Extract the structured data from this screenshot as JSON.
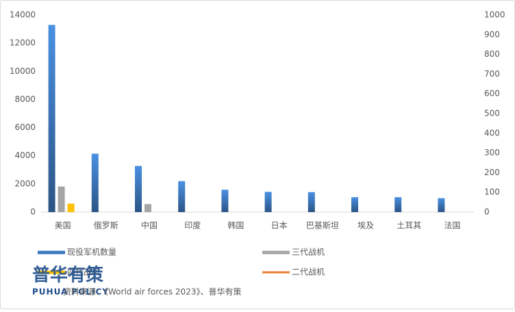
{
  "chart_data": {
    "type": "bar",
    "categories": [
      "美国",
      "俄罗斯",
      "中国",
      "印度",
      "韩国",
      "日本",
      "巴基斯坦",
      "埃及",
      "土耳其",
      "法国"
    ],
    "series": [
      {
        "name": "现役军机数量",
        "color": "#3a78c2",
        "values": [
          13300,
          4150,
          3280,
          2200,
          1590,
          1440,
          1420,
          1060,
          1060,
          990
        ]
      },
      {
        "name": "三代战机",
        "color": "#a5a5a5",
        "values": [
          1820,
          null,
          570,
          null,
          null,
          null,
          null,
          null,
          null,
          null
        ]
      },
      {
        "name": "四代战机",
        "color": "#ffc000",
        "values": [
          600,
          null,
          null,
          null,
          null,
          null,
          null,
          null,
          null,
          null
        ]
      },
      {
        "name": "二代战机",
        "color": "#ed7d31",
        "kind": "line",
        "values": [
          null,
          null,
          null,
          null,
          null,
          null,
          null,
          null,
          null,
          null
        ]
      }
    ],
    "ylim": [
      0,
      14000
    ],
    "yticks": [
      0,
      2000,
      4000,
      6000,
      8000,
      10000,
      12000,
      14000
    ],
    "y2lim": [
      0,
      1000
    ],
    "y2ticks": [
      0,
      100,
      200,
      300,
      400,
      500,
      600,
      700,
      800,
      900,
      1000
    ],
    "grid": false,
    "source": "资料来源：《World air forces 2023》、普华有策",
    "watermark": {
      "cn": "普华有策",
      "en": "PUHUA POLICY"
    }
  }
}
